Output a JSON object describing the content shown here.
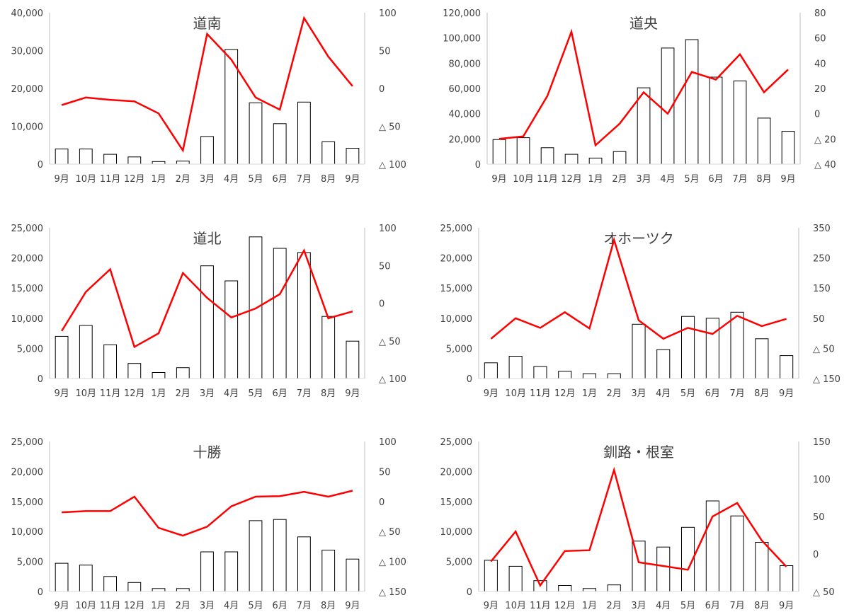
{
  "chart_data": [
    {
      "type": "bar",
      "title": "道南",
      "categories": [
        "9月",
        "10月",
        "11月",
        "12月",
        "1月",
        "2月",
        "3月",
        "4月",
        "5月",
        "6月",
        "7月",
        "8月",
        "9月"
      ],
      "series": [
        {
          "axis": "left",
          "type": "bar",
          "color": "#ffffff",
          "values": [
            4000,
            4000,
            2600,
            1900,
            700,
            800,
            7300,
            30300,
            16200,
            10700,
            16400,
            5900,
            4200
          ]
        },
        {
          "axis": "right",
          "type": "line",
          "color": "#ff0000",
          "values": [
            -22,
            -12,
            -15,
            -17,
            -33,
            -82,
            72,
            38,
            -12,
            -28,
            93,
            42,
            3
          ]
        }
      ],
      "ylim": [
        0,
        40000
      ],
      "y_ticks": [
        0,
        10000,
        20000,
        30000,
        40000
      ],
      "y_tick_labels": [
        "0",
        "10,000",
        "20,000",
        "30,000",
        "40,000"
      ],
      "y2lim": [
        -100,
        100
      ],
      "y2_ticks": [
        -100,
        -50,
        0,
        50,
        100
      ],
      "y2_tick_labels": [
        "△ 100",
        "△ 50",
        "0",
        "50",
        "100"
      ]
    },
    {
      "type": "bar",
      "title": "道央",
      "categories": [
        "9月",
        "10月",
        "11月",
        "12月",
        "1月",
        "2月",
        "3月",
        "4月",
        "5月",
        "6月",
        "7月",
        "8月",
        "9月"
      ],
      "series": [
        {
          "axis": "left",
          "type": "bar",
          "color": "#ffffff",
          "values": [
            19500,
            21000,
            13000,
            7800,
            4800,
            10000,
            60500,
            92000,
            98700,
            69000,
            66000,
            36500,
            26000
          ]
        },
        {
          "axis": "right",
          "type": "line",
          "color": "#ff0000",
          "values": [
            -20,
            -18,
            14,
            65,
            -25,
            -8,
            17,
            0,
            33,
            27,
            47,
            17,
            35
          ]
        }
      ],
      "ylim": [
        0,
        120000
      ],
      "y_ticks": [
        0,
        20000,
        40000,
        60000,
        80000,
        100000,
        120000
      ],
      "y_tick_labels": [
        "0",
        "20,000",
        "40,000",
        "60,000",
        "80,000",
        "100,000",
        "120,000"
      ],
      "y2lim": [
        -40,
        80
      ],
      "y2_ticks": [
        -40,
        -20,
        0,
        20,
        40,
        60,
        80
      ],
      "y2_tick_labels": [
        "△ 40",
        "△ 20",
        "0",
        "20",
        "40",
        "60",
        "80"
      ]
    },
    {
      "type": "bar",
      "title": "道北",
      "categories": [
        "9月",
        "10月",
        "11月",
        "12月",
        "1月",
        "2月",
        "3月",
        "4月",
        "5月",
        "6月",
        "7月",
        "8月",
        "9月"
      ],
      "series": [
        {
          "axis": "left",
          "type": "bar",
          "color": "#ffffff",
          "values": [
            7000,
            8800,
            5600,
            2500,
            1000,
            1800,
            18700,
            16200,
            23500,
            21600,
            20900,
            10300,
            6200
          ]
        },
        {
          "axis": "right",
          "type": "line",
          "color": "#ff0000",
          "values": [
            -37,
            15,
            45,
            -58,
            -40,
            40,
            7,
            -19,
            -7,
            12,
            70,
            -20,
            -11
          ]
        }
      ],
      "ylim": [
        0,
        25000
      ],
      "y_ticks": [
        0,
        5000,
        10000,
        15000,
        20000,
        25000
      ],
      "y_tick_labels": [
        "0",
        "5,000",
        "10,000",
        "15,000",
        "20,000",
        "25,000"
      ],
      "y2lim": [
        -100,
        100
      ],
      "y2_ticks": [
        -100,
        -50,
        0,
        50,
        100
      ],
      "y2_tick_labels": [
        "△ 100",
        "△ 50",
        "0",
        "50",
        "100"
      ]
    },
    {
      "type": "bar",
      "title": "オホーツク",
      "categories": [
        "9月",
        "10月",
        "11月",
        "12月",
        "1月",
        "2月",
        "3月",
        "4月",
        "5月",
        "6月",
        "7月",
        "8月",
        "9月"
      ],
      "series": [
        {
          "axis": "left",
          "type": "bar",
          "color": "#ffffff",
          "values": [
            2600,
            3700,
            2000,
            1200,
            800,
            800,
            9000,
            4800,
            10300,
            10000,
            11000,
            6600,
            3800
          ]
        },
        {
          "axis": "right",
          "type": "line",
          "color": "#ff0000",
          "values": [
            -18,
            50,
            18,
            70,
            16,
            310,
            43,
            -18,
            18,
            -2,
            58,
            24,
            48
          ]
        }
      ],
      "ylim": [
        0,
        25000
      ],
      "y_ticks": [
        0,
        5000,
        10000,
        15000,
        20000,
        25000
      ],
      "y_tick_labels": [
        "0",
        "5,000",
        "10,000",
        "15,000",
        "20,000",
        "25,000"
      ],
      "y2lim": [
        -150,
        350
      ],
      "y2_ticks": [
        -150,
        -50,
        50,
        150,
        250,
        350
      ],
      "y2_tick_labels": [
        "△ 150",
        "△ 50",
        "50",
        "150",
        "250",
        "350"
      ]
    },
    {
      "type": "bar",
      "title": "十勝",
      "categories": [
        "9月",
        "10月",
        "11月",
        "12月",
        "1月",
        "2月",
        "3月",
        "4月",
        "5月",
        "6月",
        "7月",
        "8月",
        "9月"
      ],
      "series": [
        {
          "axis": "left",
          "type": "bar",
          "color": "#ffffff",
          "values": [
            4700,
            4400,
            2500,
            1500,
            500,
            500,
            6600,
            6600,
            11800,
            12000,
            9100,
            6900,
            5400
          ]
        },
        {
          "axis": "right",
          "type": "line",
          "color": "#ff0000",
          "values": [
            -18,
            -16,
            -16,
            8,
            -44,
            -57,
            -42,
            -8,
            8,
            9,
            16,
            8,
            18
          ]
        }
      ],
      "ylim": [
        0,
        25000
      ],
      "y_ticks": [
        0,
        5000,
        10000,
        15000,
        20000,
        25000
      ],
      "y_tick_labels": [
        "0",
        "5,000",
        "10,000",
        "15,000",
        "20,000",
        "25,000"
      ],
      "y2lim": [
        -150,
        100
      ],
      "y2_ticks": [
        -150,
        -100,
        -50,
        0,
        50,
        100
      ],
      "y2_tick_labels": [
        "△ 150",
        "△ 100",
        "△ 50",
        "0",
        "50",
        "100"
      ]
    },
    {
      "type": "bar",
      "title": "釧路・根室",
      "categories": [
        "9月",
        "10月",
        "11月",
        "12月",
        "1月",
        "2月",
        "3月",
        "4月",
        "5月",
        "6月",
        "7月",
        "8月",
        "9月"
      ],
      "series": [
        {
          "axis": "left",
          "type": "bar",
          "color": "#ffffff",
          "values": [
            5200,
            4200,
            1800,
            1000,
            500,
            1100,
            8400,
            7400,
            10700,
            15100,
            12600,
            8200,
            4300
          ]
        },
        {
          "axis": "right",
          "type": "line",
          "color": "#ff0000",
          "values": [
            -10,
            30,
            -42,
            4,
            5,
            112,
            -11,
            -16,
            -21,
            50,
            68,
            18,
            -17
          ]
        }
      ],
      "ylim": [
        0,
        25000
      ],
      "y_ticks": [
        0,
        5000,
        10000,
        15000,
        20000,
        25000
      ],
      "y_tick_labels": [
        "0",
        "5,000",
        "10,000",
        "15,000",
        "20,000",
        "25,000"
      ],
      "y2lim": [
        -50,
        150
      ],
      "y2_ticks": [
        -50,
        0,
        50,
        100,
        150
      ],
      "y2_tick_labels": [
        "△ 50",
        "0",
        "50",
        "100",
        "150"
      ]
    }
  ]
}
